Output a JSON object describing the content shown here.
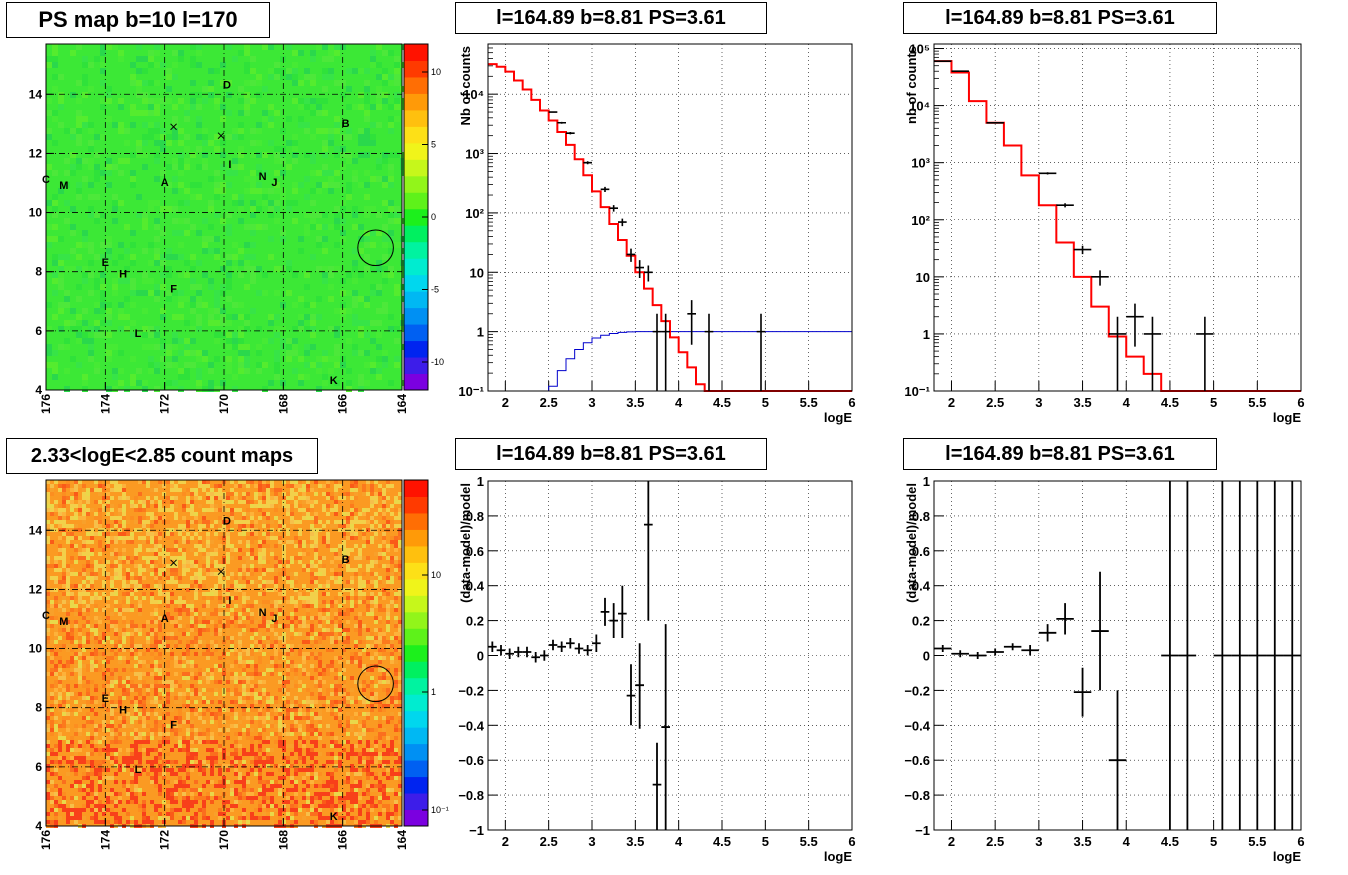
{
  "panels": [
    {
      "id": "ps-map",
      "title": "PS map b=10 l=170",
      "type": "heatmap",
      "xticks": [
        "176",
        "174",
        "172",
        "170",
        "168",
        "166",
        "164"
      ],
      "yticks": [
        "4",
        "6",
        "8",
        "10",
        "12",
        "14"
      ],
      "colorbar_ticks": [
        "10",
        "5",
        "0",
        "-5",
        "-10"
      ],
      "colorbar_colors": [
        "#7b00e0",
        "#3d1de9",
        "#0024f0",
        "#0060f2",
        "#0090f3",
        "#00b8f3",
        "#00d7ee",
        "#00ecd0",
        "#00f3a0",
        "#00f060",
        "#1cf01c",
        "#5ef21a",
        "#92f51a",
        "#c6f71b",
        "#f0f41a",
        "#fde017",
        "#ffc00e",
        "#ff9a08",
        "#ff6e04",
        "#ff3a00",
        "#ff1200"
      ],
      "background_color": "#3ce836",
      "markers": [
        {
          "label": "D",
          "l": 169.9,
          "b": 14.2
        },
        {
          "label": "B",
          "l": 165.9,
          "b": 12.9
        },
        {
          "label": "I",
          "l": 169.8,
          "b": 11.5
        },
        {
          "label": "N",
          "l": 168.7,
          "b": 11.1
        },
        {
          "label": "J",
          "l": 168.3,
          "b": 10.9
        },
        {
          "label": "A",
          "l": 172.0,
          "b": 10.9
        },
        {
          "label": "C",
          "l": 176.0,
          "b": 11.0
        },
        {
          "label": "M",
          "l": 175.4,
          "b": 10.8
        },
        {
          "label": "E",
          "l": 174.0,
          "b": 8.2
        },
        {
          "label": "H",
          "l": 173.4,
          "b": 7.8
        },
        {
          "label": "F",
          "l": 171.7,
          "b": 7.3
        },
        {
          "label": "L",
          "l": 172.9,
          "b": 5.8
        },
        {
          "label": "K",
          "l": 166.3,
          "b": 4.2
        }
      ],
      "crosses": [
        {
          "l": 171.7,
          "b": 12.9
        },
        {
          "l": 170.1,
          "b": 12.6
        }
      ],
      "circle": {
        "l": 164.89,
        "b": 8.81,
        "r": 0.5
      }
    },
    {
      "id": "count-map",
      "title": "2.33<logE<2.85 count maps",
      "type": "heatmap",
      "xticks": [
        "176",
        "174",
        "172",
        "170",
        "168",
        "166",
        "164"
      ],
      "yticks": [
        "4",
        "6",
        "8",
        "10",
        "12",
        "14"
      ],
      "colorbar_ticks": [
        "10",
        "1",
        "10⁻¹"
      ],
      "colorbar_colors": [
        "#7b00e0",
        "#3d1de9",
        "#0024f0",
        "#0060f2",
        "#0090f3",
        "#00b8f3",
        "#00d7ee",
        "#00ecd0",
        "#00f3a0",
        "#00f060",
        "#1cf01c",
        "#5ef21a",
        "#92f51a",
        "#c6f71b",
        "#f0f41a",
        "#fde017",
        "#ffc00e",
        "#ff9a08",
        "#ff6e04",
        "#ff3a00",
        "#ff1200"
      ],
      "background_color": "#fb9a22",
      "markers": [
        {
          "label": "D",
          "l": 169.9,
          "b": 14.2
        },
        {
          "label": "B",
          "l": 165.9,
          "b": 12.9
        },
        {
          "label": "I",
          "l": 169.8,
          "b": 11.5
        },
        {
          "label": "N",
          "l": 168.7,
          "b": 11.1
        },
        {
          "label": "J",
          "l": 168.3,
          "b": 10.9
        },
        {
          "label": "A",
          "l": 172.0,
          "b": 10.9
        },
        {
          "label": "C",
          "l": 176.0,
          "b": 11.0
        },
        {
          "label": "M",
          "l": 175.4,
          "b": 10.8
        },
        {
          "label": "E",
          "l": 174.0,
          "b": 8.2
        },
        {
          "label": "H",
          "l": 173.4,
          "b": 7.8
        },
        {
          "label": "F",
          "l": 171.7,
          "b": 7.3
        },
        {
          "label": "L",
          "l": 172.9,
          "b": 5.8
        },
        {
          "label": "K",
          "l": 166.3,
          "b": 4.2
        }
      ],
      "crosses": [
        {
          "l": 171.7,
          "b": 12.9
        },
        {
          "l": 170.1,
          "b": 12.6
        }
      ],
      "circle": {
        "l": 164.89,
        "b": 8.81,
        "r": 0.5
      }
    }
  ],
  "spectra": [
    {
      "id": "spectrum-fine",
      "title": "l=164.89 b=8.81 PS=3.61",
      "ylabel": "Nb of counts",
      "xlabel": "logE",
      "xticks": [
        "2",
        "2.5",
        "3",
        "3.5",
        "4",
        "4.5",
        "5",
        "5.5",
        "6"
      ],
      "yticks": [
        "10⁻¹",
        "1",
        "10",
        "10²",
        "10³",
        "10⁴"
      ],
      "model_color": "#ff0000",
      "signal_color": "#0000cc",
      "chart_data": {
        "type": "line",
        "yscale": "log",
        "xlim": [
          1.8,
          6.0
        ],
        "ylim": [
          0.1,
          70000
        ],
        "bin_edges": [
          1.8,
          1.9,
          2.0,
          2.1,
          2.2,
          2.3,
          2.4,
          2.5,
          2.6,
          2.7,
          2.8,
          2.9,
          3.0,
          3.1,
          3.2,
          3.3,
          3.4,
          3.5,
          3.6,
          3.7,
          3.8,
          3.9,
          4.0,
          4.1,
          4.2,
          4.3,
          4.4,
          4.5,
          4.6,
          4.7,
          4.8,
          4.9,
          5.0,
          5.1,
          5.2,
          5.3,
          5.4,
          5.5,
          5.6,
          5.7,
          5.8,
          5.9,
          6.0
        ],
        "model": [
          32000,
          29000,
          24000,
          17000,
          12000,
          8000,
          5300,
          3600,
          2300,
          1400,
          800,
          430,
          230,
          125,
          65,
          35,
          19,
          10,
          5.3,
          2.8,
          1.5,
          0.8,
          0.45,
          0.25,
          0.13,
          0.1,
          0.1,
          0.1,
          0.1,
          0.1,
          0.1,
          0.1,
          0.1,
          0.1,
          0.1,
          0.1,
          0.1,
          0.1,
          0.1,
          0.1,
          0.1,
          0.1
        ],
        "signal": [
          0.1,
          0.1,
          0.1,
          0.1,
          0.1,
          0.1,
          0.1,
          0.12,
          0.22,
          0.35,
          0.5,
          0.65,
          0.78,
          0.87,
          0.93,
          0.97,
          0.99,
          1.0,
          1.0,
          1.0,
          1.0,
          1.0,
          1.0,
          1.0,
          1.0,
          1.0,
          1.0,
          1.0,
          1.0,
          1.0,
          1.0,
          1.0,
          1.0,
          1.0,
          1.0,
          1.0,
          1.0,
          1.0,
          1.0,
          1.0,
          1.0,
          1.0
        ],
        "data_points": [
          {
            "x": 2.55,
            "y": 5000,
            "lo": 4850,
            "hi": 5150
          },
          {
            "x": 2.65,
            "y": 3300,
            "lo": 3180,
            "hi": 3420
          },
          {
            "x": 2.75,
            "y": 2200,
            "lo": 2100,
            "hi": 2300
          },
          {
            "x": 2.95,
            "y": 700,
            "lo": 660,
            "hi": 740
          },
          {
            "x": 3.15,
            "y": 250,
            "lo": 225,
            "hi": 275
          },
          {
            "x": 3.25,
            "y": 120,
            "lo": 105,
            "hi": 135
          },
          {
            "x": 3.35,
            "y": 70,
            "lo": 60,
            "hi": 80
          },
          {
            "x": 3.45,
            "y": 20,
            "lo": 15,
            "hi": 25
          },
          {
            "x": 3.55,
            "y": 12,
            "lo": 8,
            "hi": 16
          },
          {
            "x": 3.65,
            "y": 10,
            "lo": 7,
            "hi": 13
          },
          {
            "x": 3.75,
            "y": 1,
            "lo": 0.1,
            "hi": 2
          },
          {
            "x": 3.85,
            "y": 1,
            "lo": 0.1,
            "hi": 2
          },
          {
            "x": 4.15,
            "y": 2,
            "lo": 0.6,
            "hi": 3.4
          },
          {
            "x": 4.35,
            "y": 1,
            "lo": 0.1,
            "hi": 2
          },
          {
            "x": 4.95,
            "y": 1,
            "lo": 0.1,
            "hi": 2
          }
        ]
      }
    },
    {
      "id": "spectrum-coarse",
      "title": "l=164.89 b=8.81 PS=3.61",
      "ylabel": "nb of counts",
      "xlabel": "logE",
      "xticks": [
        "2",
        "2.5",
        "3",
        "3.5",
        "4",
        "4.5",
        "5",
        "5.5",
        "6"
      ],
      "yticks": [
        "10⁻¹",
        "1",
        "10",
        "10²",
        "10³",
        "10⁴",
        "10⁵"
      ],
      "model_color": "#ff0000",
      "chart_data": {
        "type": "line",
        "yscale": "log",
        "xlim": [
          1.8,
          6.0
        ],
        "ylim": [
          0.1,
          120000
        ],
        "bin_edges": [
          1.8,
          2.0,
          2.2,
          2.4,
          2.6,
          2.8,
          3.0,
          3.2,
          3.4,
          3.6,
          3.8,
          4.0,
          4.2,
          4.4,
          4.6,
          4.8,
          5.0,
          5.2,
          5.4,
          5.6,
          5.8,
          6.0
        ],
        "model": [
          60000,
          38000,
          12000,
          5000,
          2000,
          600,
          180,
          40,
          10,
          3,
          0.9,
          0.4,
          0.2,
          0.1,
          0.1,
          0.1,
          0.1,
          0.1,
          0.1,
          0.1,
          0.1
        ],
        "data_points": [
          {
            "x": 1.9,
            "y": 60000,
            "lo": 59700,
            "hi": 60300
          },
          {
            "x": 2.1,
            "y": 40000,
            "lo": 39700,
            "hi": 40300
          },
          {
            "x": 2.5,
            "y": 5000,
            "lo": 4900,
            "hi": 5100
          },
          {
            "x": 3.1,
            "y": 650,
            "lo": 620,
            "hi": 680
          },
          {
            "x": 3.3,
            "y": 180,
            "lo": 165,
            "hi": 195
          },
          {
            "x": 3.5,
            "y": 30,
            "lo": 25,
            "hi": 35
          },
          {
            "x": 3.7,
            "y": 10,
            "lo": 7,
            "hi": 13
          },
          {
            "x": 3.9,
            "y": 1,
            "lo": 0.1,
            "hi": 2
          },
          {
            "x": 4.1,
            "y": 2,
            "lo": 0.6,
            "hi": 3.4
          },
          {
            "x": 4.3,
            "y": 1,
            "lo": 0.1,
            "hi": 2
          },
          {
            "x": 4.9,
            "y": 1,
            "lo": 0.1,
            "hi": 2
          }
        ]
      }
    }
  ],
  "residuals": [
    {
      "id": "residual-fine",
      "title": "l=164.89 b=8.81 PS=3.61",
      "ylabel": "(data-model)/model",
      "xlabel": "logE",
      "xticks": [
        "2",
        "2.5",
        "3",
        "3.5",
        "4",
        "4.5",
        "5",
        "5.5",
        "6"
      ],
      "yticks": [
        "−1",
        "−0.8",
        "−0.6",
        "−0.4",
        "−0.2",
        "0",
        "0.2",
        "0.4",
        "0.6",
        "0.8",
        "1"
      ],
      "chart_data": {
        "type": "scatter",
        "xlim": [
          1.8,
          6.0
        ],
        "ylim": [
          -1,
          1
        ],
        "half_width": 0.05,
        "points": [
          {
            "x": 1.85,
            "y": 0.05,
            "lo": 0.02,
            "hi": 0.08
          },
          {
            "x": 1.95,
            "y": 0.03,
            "lo": 0.0,
            "hi": 0.06
          },
          {
            "x": 2.05,
            "y": 0.01,
            "lo": -0.02,
            "hi": 0.04
          },
          {
            "x": 2.15,
            "y": 0.02,
            "lo": -0.01,
            "hi": 0.05
          },
          {
            "x": 2.25,
            "y": 0.02,
            "lo": -0.01,
            "hi": 0.05
          },
          {
            "x": 2.35,
            "y": -0.01,
            "lo": -0.04,
            "hi": 0.02
          },
          {
            "x": 2.45,
            "y": 0.0,
            "lo": -0.03,
            "hi": 0.03
          },
          {
            "x": 2.55,
            "y": 0.06,
            "lo": 0.03,
            "hi": 0.09
          },
          {
            "x": 2.65,
            "y": 0.05,
            "lo": 0.02,
            "hi": 0.08
          },
          {
            "x": 2.75,
            "y": 0.07,
            "lo": 0.04,
            "hi": 0.1
          },
          {
            "x": 2.85,
            "y": 0.04,
            "lo": 0.01,
            "hi": 0.07
          },
          {
            "x": 2.95,
            "y": 0.03,
            "lo": 0.0,
            "hi": 0.06
          },
          {
            "x": 3.05,
            "y": 0.07,
            "lo": 0.02,
            "hi": 0.12
          },
          {
            "x": 3.15,
            "y": 0.25,
            "lo": 0.17,
            "hi": 0.33
          },
          {
            "x": 3.25,
            "y": 0.2,
            "lo": 0.1,
            "hi": 0.3
          },
          {
            "x": 3.35,
            "y": 0.24,
            "lo": 0.1,
            "hi": 0.4
          },
          {
            "x": 3.45,
            "y": -0.23,
            "lo": -0.4,
            "hi": -0.05
          },
          {
            "x": 3.55,
            "y": -0.17,
            "lo": -0.42,
            "hi": 0.07
          },
          {
            "x": 3.65,
            "y": 0.75,
            "lo": 0.2,
            "hi": 1.0
          },
          {
            "x": 3.75,
            "y": -0.74,
            "lo": -1.0,
            "hi": -0.5
          },
          {
            "x": 3.85,
            "y": -0.41,
            "lo": -1.0,
            "hi": 0.18
          }
        ]
      }
    },
    {
      "id": "residual-coarse",
      "title": "l=164.89 b=8.81 PS=3.61",
      "ylabel": "(data-model)/model",
      "xlabel": "logE",
      "xticks": [
        "2",
        "2.5",
        "3",
        "3.5",
        "4",
        "4.5",
        "5",
        "5.5",
        "6"
      ],
      "yticks": [
        "−1",
        "−0.8",
        "−0.6",
        "−0.4",
        "−0.2",
        "0",
        "0.2",
        "0.4",
        "0.6",
        "0.8",
        "1"
      ],
      "chart_data": {
        "type": "scatter",
        "xlim": [
          1.8,
          6.0
        ],
        "ylim": [
          -1,
          1
        ],
        "half_width": 0.1,
        "points": [
          {
            "x": 1.9,
            "y": 0.04,
            "lo": 0.02,
            "hi": 0.06
          },
          {
            "x": 2.1,
            "y": 0.01,
            "lo": -0.01,
            "hi": 0.03
          },
          {
            "x": 2.3,
            "y": 0.0,
            "lo": -0.02,
            "hi": 0.02
          },
          {
            "x": 2.5,
            "y": 0.02,
            "lo": 0.0,
            "hi": 0.04
          },
          {
            "x": 2.7,
            "y": 0.05,
            "lo": 0.03,
            "hi": 0.07
          },
          {
            "x": 2.9,
            "y": 0.03,
            "lo": 0.0,
            "hi": 0.06
          },
          {
            "x": 3.1,
            "y": 0.13,
            "lo": 0.08,
            "hi": 0.18
          },
          {
            "x": 3.3,
            "y": 0.21,
            "lo": 0.12,
            "hi": 0.3
          },
          {
            "x": 3.5,
            "y": -0.21,
            "lo": -0.35,
            "hi": -0.07
          },
          {
            "x": 3.7,
            "y": 0.14,
            "lo": -0.2,
            "hi": 0.48
          },
          {
            "x": 3.9,
            "y": -0.6,
            "lo": -1.0,
            "hi": -0.2
          },
          {
            "x": 4.5,
            "y": 0,
            "lo": -1.0,
            "hi": 1.0
          },
          {
            "x": 4.7,
            "y": 0,
            "lo": -1.0,
            "hi": 1.0
          },
          {
            "x": 5.1,
            "y": 0,
            "lo": -1.0,
            "hi": 1.0
          },
          {
            "x": 5.3,
            "y": 0,
            "lo": -1.0,
            "hi": 1.0
          },
          {
            "x": 5.5,
            "y": 0,
            "lo": -1.0,
            "hi": 1.0
          },
          {
            "x": 5.7,
            "y": 0,
            "lo": -1.0,
            "hi": 1.0
          },
          {
            "x": 5.9,
            "y": 0,
            "lo": -1.0,
            "hi": 1.0
          }
        ]
      }
    }
  ]
}
